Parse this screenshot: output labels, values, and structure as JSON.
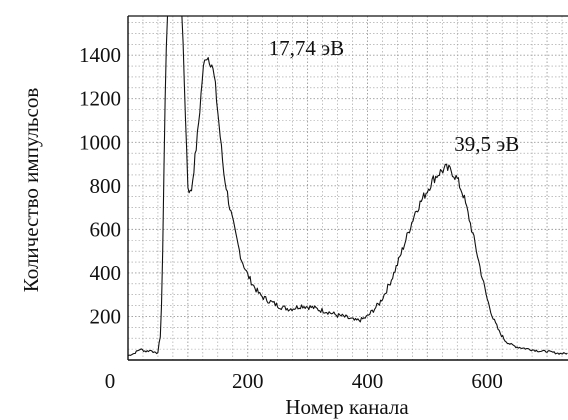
{
  "chart_data": {
    "type": "line",
    "xlabel": "Номер канала",
    "ylabel": "Количество импульсов",
    "xlim": [
      0,
      735
    ],
    "ylim": [
      0,
      1580
    ],
    "x_ticks": [
      0,
      200,
      400,
      600
    ],
    "y_ticks": [
      200,
      400,
      600,
      800,
      1000,
      1200,
      1400
    ],
    "grid": true,
    "annotations": [
      {
        "text": "17,74  эВ",
        "x": 235,
        "y": 1400
      },
      {
        "text": "39,5  эВ",
        "x": 545,
        "y": 960
      }
    ],
    "series": [
      {
        "x": [
          0,
          10,
          20,
          30,
          40,
          45,
          50,
          55,
          58,
          62,
          65,
          68,
          70,
          75,
          80,
          85,
          90,
          95,
          100,
          105,
          110,
          115,
          120,
          125,
          130,
          135,
          140,
          145,
          150,
          160,
          170,
          180,
          190,
          200,
          210,
          220,
          230,
          240,
          250,
          260,
          270,
          280,
          290,
          300,
          310,
          320,
          330,
          340,
          350,
          360,
          370,
          380,
          390,
          400,
          410,
          420,
          430,
          440,
          450,
          460,
          470,
          480,
          490,
          500,
          510,
          520,
          530,
          540,
          550,
          560,
          570,
          580,
          590,
          600,
          610,
          620,
          630,
          640,
          650,
          660,
          670,
          680,
          690,
          700,
          710,
          720,
          735
        ],
        "y": [
          20,
          30,
          50,
          40,
          45,
          30,
          35,
          130,
          500,
          1200,
          1580,
          1580,
          1580,
          1580,
          1580,
          1580,
          1580,
          1200,
          800,
          760,
          880,
          1000,
          1150,
          1320,
          1400,
          1390,
          1360,
          1280,
          1140,
          860,
          700,
          570,
          460,
          390,
          340,
          300,
          280,
          265,
          250,
          240,
          235,
          240,
          250,
          245,
          240,
          230,
          225,
          215,
          205,
          200,
          190,
          180,
          185,
          200,
          230,
          260,
          310,
          370,
          440,
          520,
          600,
          680,
          730,
          780,
          830,
          860,
          880,
          870,
          830,
          760,
          650,
          530,
          400,
          280,
          190,
          130,
          90,
          70,
          60,
          55,
          50,
          45,
          40,
          40,
          35,
          30,
          30
        ]
      }
    ]
  }
}
